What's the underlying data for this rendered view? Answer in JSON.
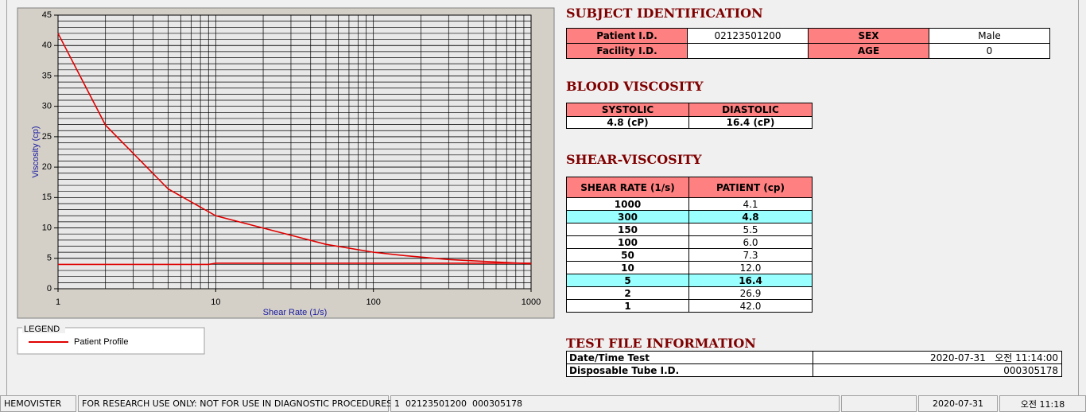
{
  "chart_data": {
    "type": "line",
    "x_label": "Shear Rate (1/s)",
    "y_label": "Viscosity (cp)",
    "xlim": [
      1,
      1000
    ],
    "xticks": [
      1,
      10,
      100,
      1000
    ],
    "x_log": true,
    "ylim": [
      0,
      45
    ],
    "yticks": [
      0,
      5,
      10,
      15,
      20,
      25,
      30,
      35,
      40,
      45
    ],
    "grid": true,
    "minor_grid": true,
    "y_minor_step": 1,
    "legend_title": "LEGEND",
    "series": [
      {
        "name": "Patient Profile",
        "color": "#e00000",
        "x": [
          1,
          2,
          5,
          10,
          50,
          100,
          150,
          300,
          1000
        ],
        "values": [
          42.0,
          26.9,
          16.4,
          12.0,
          7.3,
          6.0,
          5.5,
          4.8,
          4.1
        ]
      },
      {
        "color": "#e00000",
        "x": [
          1,
          9,
          10,
          1000
        ],
        "values": [
          4.0,
          4.0,
          4.2,
          4.2
        ]
      }
    ]
  },
  "subject_identification": {
    "title": "SUBJECT IDENTIFICATION",
    "fields": [
      {
        "label": "Patient I.D.",
        "value": "02123501200"
      },
      {
        "label": "SEX",
        "value": "Male"
      },
      {
        "label": "Facility I.D."
      },
      {
        "label": "AGE",
        "value": "0"
      }
    ]
  },
  "blood_viscosity": {
    "title": "BLOOD VISCOSITY",
    "headers": [
      "SYSTOLIC",
      "DIASTOLIC"
    ],
    "values": [
      "4.8 (cP)",
      "16.4 (cP)"
    ]
  },
  "shear_viscosity": {
    "title": "SHEAR-VISCOSITY",
    "headers": [
      "SHEAR RATE (1/s)",
      "PATIENT (cp)"
    ],
    "highlight_color": "#99ffff",
    "rows": [
      {
        "cells": [
          "1000",
          "4.1"
        ]
      },
      {
        "cells": [
          "300",
          "4.8"
        ],
        "highlight": true
      },
      {
        "cells": [
          "150",
          "5.5"
        ]
      },
      {
        "cells": [
          "100",
          "6.0"
        ]
      },
      {
        "cells": [
          "50",
          "7.3"
        ]
      },
      {
        "cells": [
          "10",
          "12.0"
        ]
      },
      {
        "cells": [
          "5",
          "16.4"
        ],
        "highlight": true
      },
      {
        "cells": [
          "2",
          "26.9"
        ]
      },
      {
        "cells": [
          "1",
          "42.0"
        ]
      }
    ]
  },
  "test_file_information": {
    "title": "TEST FILE INFORMATION",
    "rows": [
      [
        "Date/Time Test",
        "2020-07-31   오전 11:14:00"
      ],
      [
        "Disposable Tube I.D.",
        "000305178"
      ]
    ]
  },
  "status_bar": [
    "HEMOVISTER",
    "FOR RESEARCH USE ONLY: NOT FOR USE IN DIAGNOSTIC PROCEDURES",
    "1  02123501200  000305178",
    "2020-07-31",
    "오전 11:18"
  ]
}
